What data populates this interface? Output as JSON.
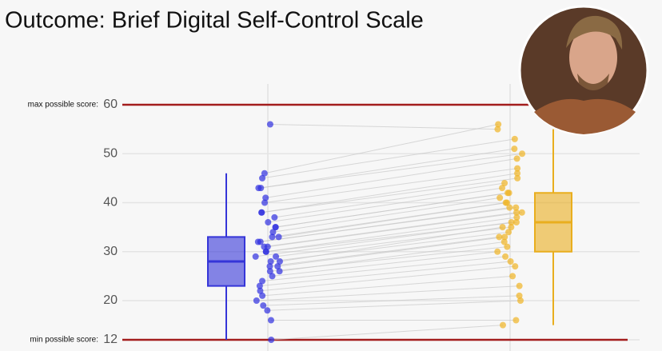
{
  "chart_data": {
    "type": "paired-box",
    "title": "Outcome: Brief Digital Self-Control Scale",
    "ylim": [
      10,
      63
    ],
    "yticks": [
      12,
      20,
      30,
      40,
      50,
      60
    ],
    "grid": true,
    "reference_lines": [
      {
        "value": 60,
        "label": "max possible score:",
        "color": "#a31d1d"
      },
      {
        "value": 12,
        "label": "min possible score:",
        "color": "#a31d1d"
      }
    ],
    "boxes": [
      {
        "q1": 23,
        "median": 28,
        "q3": 33,
        "whisker_low": 12,
        "whisker_high": 46,
        "color": "#3535d8"
      },
      {
        "q1": 30,
        "median": 36,
        "q3": 42,
        "whisker_low": 15,
        "whisker_high": 55,
        "color": "#e9ae1e"
      }
    ],
    "series": [
      {
        "color": "#2f2fe0",
        "values": [
          56,
          46,
          45,
          43,
          43,
          41,
          40,
          38,
          38,
          37,
          36,
          35,
          35,
          34,
          33,
          33,
          32,
          32,
          31,
          31,
          30,
          30,
          29,
          29,
          28,
          28,
          27,
          27,
          26,
          26,
          25,
          24,
          23,
          22,
          21,
          20,
          19,
          18,
          16,
          12
        ]
      },
      {
        "color": "#f0b323",
        "values": [
          55,
          56,
          53,
          51,
          50,
          49,
          47,
          46,
          45,
          44,
          43,
          42,
          42,
          41,
          40,
          40,
          39,
          39,
          38,
          38,
          37,
          36,
          36,
          35,
          35,
          34,
          33,
          33,
          32,
          31,
          30,
          29,
          28,
          27,
          25,
          23,
          21,
          20,
          16,
          15
        ]
      }
    ]
  }
}
